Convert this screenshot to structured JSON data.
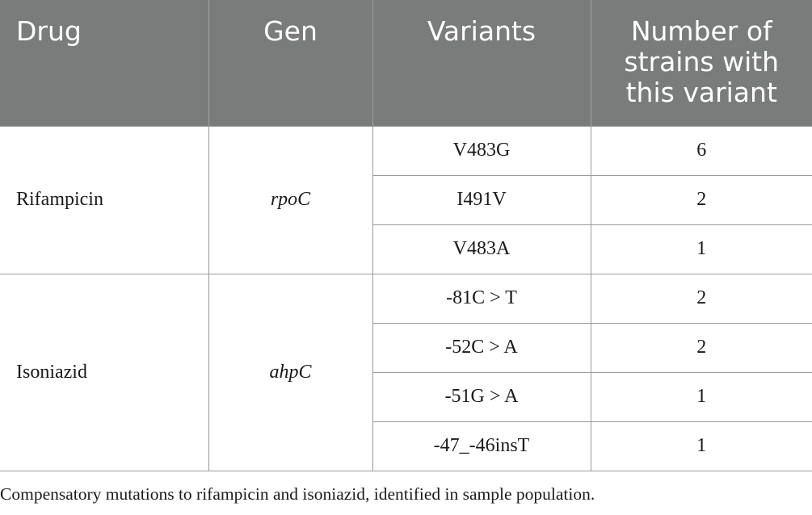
{
  "table": {
    "headers": [
      "Drug",
      "Gen",
      "Variants",
      "Number of strains with this variant"
    ],
    "groups": [
      {
        "drug": "Rifampicin",
        "gene": "rpoC",
        "rows": [
          {
            "variant": "V483G",
            "count": "6"
          },
          {
            "variant": "I491V",
            "count": "2"
          },
          {
            "variant": "V483A",
            "count": "1"
          }
        ]
      },
      {
        "drug": "Isoniazid",
        "gene": "ahpC",
        "rows": [
          {
            "variant": "-81C > T",
            "count": "2"
          },
          {
            "variant": "-52C > A",
            "count": "2"
          },
          {
            "variant": "-51G > A",
            "count": "1"
          },
          {
            "variant": "-47_-46insT",
            "count": "1"
          }
        ]
      }
    ]
  },
  "caption": "Compensatory mutations to rifampicin and isoniazid, identified in sample population."
}
